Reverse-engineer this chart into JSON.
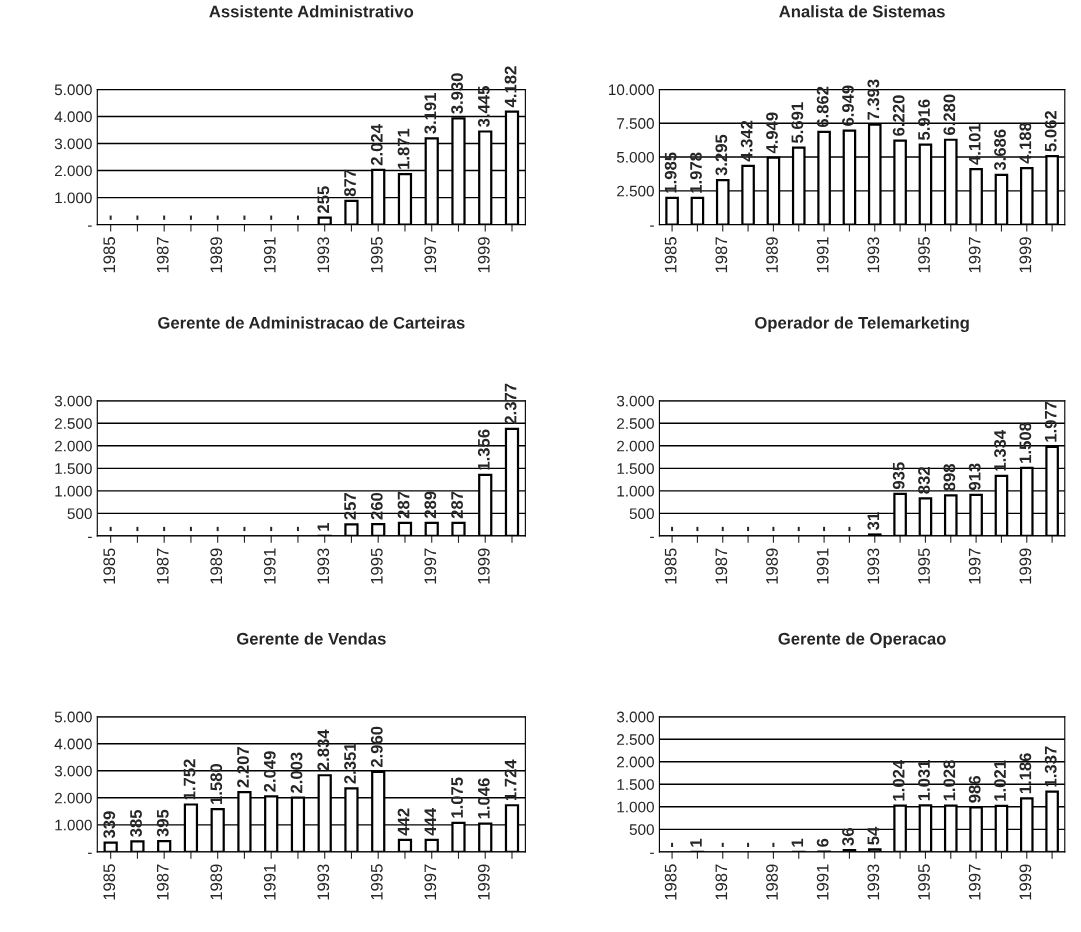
{
  "chart_data": [
    {
      "type": "bar",
      "title": "Assistente Administrativo",
      "categories": [
        "1985",
        null,
        "1987",
        null,
        "1989",
        null,
        "1991",
        null,
        "1993",
        null,
        "1995",
        null,
        "1997",
        null,
        "1999",
        null
      ],
      "values": [
        0,
        0,
        0,
        0,
        0,
        0,
        0,
        0,
        255,
        877,
        2024,
        1871,
        3191,
        3930,
        3445,
        4182
      ],
      "value_labels": [
        "-",
        "-",
        "-",
        "-",
        "-",
        "-",
        "-",
        "-",
        "255",
        "877",
        "2.024",
        "1.871",
        "3.191",
        "3.930",
        "3.445",
        "4.182"
      ],
      "color": "#ffffff",
      "ylim": [
        0,
        5000
      ],
      "yticks": [
        {
          "value": 0,
          "label": "-"
        },
        {
          "value": 1000,
          "label": "1.000"
        },
        {
          "value": 2000,
          "label": "2.000"
        },
        {
          "value": 3000,
          "label": "3.000"
        },
        {
          "value": 4000,
          "label": "4.000"
        },
        {
          "value": 5000,
          "label": "5.000"
        }
      ],
      "grid": "y"
    },
    {
      "type": "bar",
      "title": "Analista de Sistemas",
      "categories": [
        "1985",
        null,
        "1987",
        null,
        "1989",
        null,
        "1991",
        null,
        "1993",
        null,
        "1995",
        null,
        "1997",
        null,
        "1999",
        null
      ],
      "values": [
        1985,
        1978,
        3295,
        4342,
        4949,
        5691,
        6862,
        6949,
        7393,
        6220,
        5916,
        6280,
        4101,
        3686,
        4188,
        5062
      ],
      "value_labels": [
        "1.985",
        "1.978",
        "3.295",
        "4.342",
        "4.949",
        "5.691",
        "6.862",
        "6.949",
        "7.393",
        "6.220",
        "5.916",
        "6.280",
        "4.101",
        "3.686",
        "4.188",
        "5.062"
      ],
      "color": "#ffffff",
      "ylim": [
        0,
        10000
      ],
      "yticks": [
        {
          "value": 0,
          "label": "-"
        },
        {
          "value": 2500,
          "label": "2.500"
        },
        {
          "value": 5000,
          "label": "5.000"
        },
        {
          "value": 7500,
          "label": "7.500"
        },
        {
          "value": 10000,
          "label": "10.000"
        }
      ],
      "grid": "y"
    },
    {
      "type": "bar",
      "title": "Gerente de Administracao de Carteiras",
      "categories": [
        "1985",
        null,
        "1987",
        null,
        "1989",
        null,
        "1991",
        null,
        "1993",
        null,
        "1995",
        null,
        "1997",
        null,
        "1999",
        null
      ],
      "values": [
        0,
        0,
        0,
        0,
        0,
        0,
        0,
        0,
        1,
        257,
        260,
        287,
        289,
        287,
        1356,
        2377
      ],
      "value_labels": [
        "-",
        "-",
        "-",
        "-",
        "-",
        "-",
        "-",
        "-",
        "1",
        "257",
        "260",
        "287",
        "289",
        "287",
        "1.356",
        "2.377"
      ],
      "color": "#ffffff",
      "ylim": [
        0,
        3000
      ],
      "yticks": [
        {
          "value": 0,
          "label": "-"
        },
        500,
        {
          "value": 1000,
          "label": "1.000"
        },
        {
          "value": 1500,
          "label": "1.500"
        },
        {
          "value": 2000,
          "label": "2.000"
        },
        {
          "value": 2500,
          "label": "2.500"
        },
        {
          "value": 3000,
          "label": "3.000"
        }
      ],
      "grid": "y"
    },
    {
      "type": "bar",
      "title": "Operador de Telemarketing",
      "categories": [
        "1985",
        null,
        "1987",
        null,
        "1989",
        null,
        "1991",
        null,
        "1993",
        null,
        "1995",
        null,
        "1997",
        null,
        "1999",
        null
      ],
      "values": [
        0,
        0,
        0,
        0,
        0,
        0,
        0,
        0,
        31,
        935,
        832,
        898,
        913,
        1334,
        1508,
        1977
      ],
      "value_labels": [
        "-",
        "-",
        "-",
        "-",
        "-",
        "-",
        "-",
        "-",
        "31",
        "935",
        "832",
        "898",
        "913",
        "1.334",
        "1.508",
        "1.977"
      ],
      "color": "#ffffff",
      "ylim": [
        0,
        3000
      ],
      "yticks": [
        {
          "value": 0,
          "label": "-"
        },
        500,
        {
          "value": 1000,
          "label": "1.000"
        },
        {
          "value": 1500,
          "label": "1.500"
        },
        {
          "value": 2000,
          "label": "2.000"
        },
        {
          "value": 2500,
          "label": "2.500"
        },
        {
          "value": 3000,
          "label": "3.000"
        }
      ],
      "grid": "y"
    },
    {
      "type": "bar",
      "title": "Gerente de Vendas",
      "categories": [
        "1985",
        null,
        "1987",
        null,
        "1989",
        null,
        "1991",
        null,
        "1993",
        null,
        "1995",
        null,
        "1997",
        null,
        "1999",
        null
      ],
      "values": [
        339,
        385,
        395,
        1752,
        1580,
        2207,
        2049,
        2003,
        2834,
        2351,
        2960,
        442,
        444,
        1075,
        1046,
        1724
      ],
      "value_labels": [
        "339",
        "385",
        "395",
        "1.752",
        "1.580",
        "2.207",
        "2.049",
        "2.003",
        "2.834",
        "2.351",
        "2.960",
        "442",
        "444",
        "1.075",
        "1.046",
        "1.724"
      ],
      "color": "#ffffff",
      "ylim": [
        0,
        5000
      ],
      "yticks": [
        {
          "value": 0,
          "label": "-"
        },
        {
          "value": 1000,
          "label": "1.000"
        },
        {
          "value": 2000,
          "label": "2.000"
        },
        {
          "value": 3000,
          "label": "3.000"
        },
        {
          "value": 4000,
          "label": "4.000"
        },
        {
          "value": 5000,
          "label": "5.000"
        }
      ],
      "grid": "y"
    },
    {
      "type": "bar",
      "title": "Gerente de Operacao",
      "categories": [
        "1985",
        null,
        "1987",
        null,
        "1989",
        null,
        "1991",
        null,
        "1993",
        null,
        "1995",
        null,
        "1997",
        null,
        "1999",
        null
      ],
      "values": [
        0,
        1,
        0,
        0,
        0,
        1,
        6,
        36,
        54,
        1024,
        1031,
        1028,
        986,
        1021,
        1186,
        1337
      ],
      "value_labels": [
        "-",
        "1",
        "-",
        "-",
        "-",
        "1",
        "6",
        "36",
        "54",
        "1.024",
        "1.031",
        "1.028",
        "986",
        "1.021",
        "1.186",
        "1.337"
      ],
      "color": "#ffffff",
      "ylim": [
        0,
        3000
      ],
      "yticks": [
        {
          "value": 0,
          "label": "-"
        },
        500,
        {
          "value": 1000,
          "label": "1.000"
        },
        {
          "value": 1500,
          "label": "1.500"
        },
        {
          "value": 2000,
          "label": "2.000"
        },
        {
          "value": 2500,
          "label": "2.500"
        },
        {
          "value": 3000,
          "label": "3.000"
        }
      ],
      "grid": "y"
    }
  ]
}
